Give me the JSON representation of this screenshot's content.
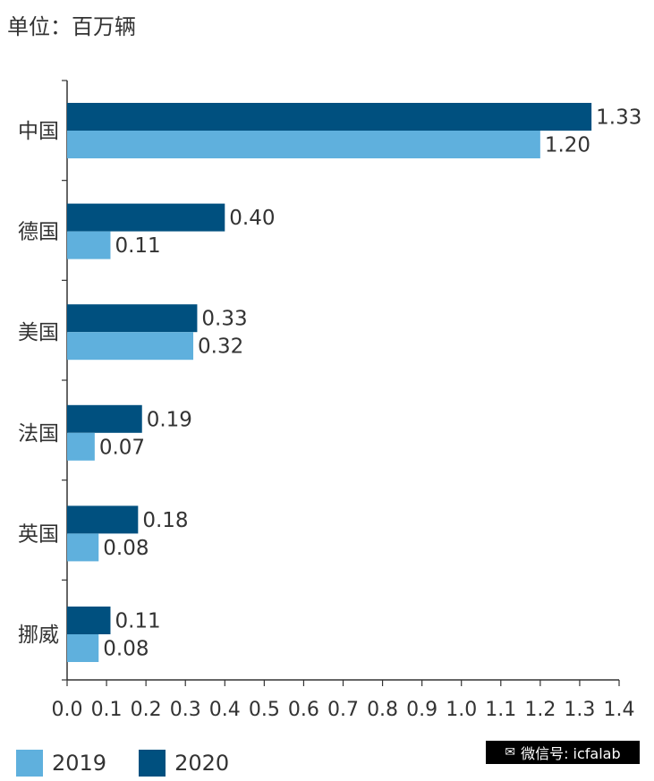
{
  "chart_data": {
    "type": "bar",
    "orientation": "horizontal",
    "unit_label": "单位：百万辆",
    "categories": [
      "中国",
      "德国",
      "美国",
      "法国",
      "英国",
      "挪威"
    ],
    "series": [
      {
        "name": "2020",
        "color": "#00507f",
        "values": [
          1.33,
          0.4,
          0.33,
          0.19,
          0.18,
          0.11
        ],
        "labels": [
          "1.33",
          "0.40",
          "0.33",
          "0.19",
          "0.18",
          "0.11"
        ]
      },
      {
        "name": "2019",
        "color": "#5fb0dd",
        "values": [
          1.2,
          0.11,
          0.32,
          0.07,
          0.08,
          0.08
        ],
        "labels": [
          "1.20",
          "0.11",
          "0.32",
          "0.07",
          "0.08",
          "0.08"
        ]
      }
    ],
    "xlim": [
      0,
      1.4
    ],
    "xticks": [
      "0.0",
      "0.1",
      "0.2",
      "0.3",
      "0.4",
      "0.5",
      "0.6",
      "0.7",
      "0.8",
      "0.9",
      "1.0",
      "1.1",
      "1.2",
      "1.3",
      "1.4"
    ],
    "legend_position": "bottom-left"
  },
  "legend": [
    {
      "label": "2019",
      "color": "#5fb0dd"
    },
    {
      "label": "2020",
      "color": "#00507f"
    }
  ],
  "watermark": {
    "icon": "wechat-icon",
    "text": "微信号: icfalab"
  }
}
